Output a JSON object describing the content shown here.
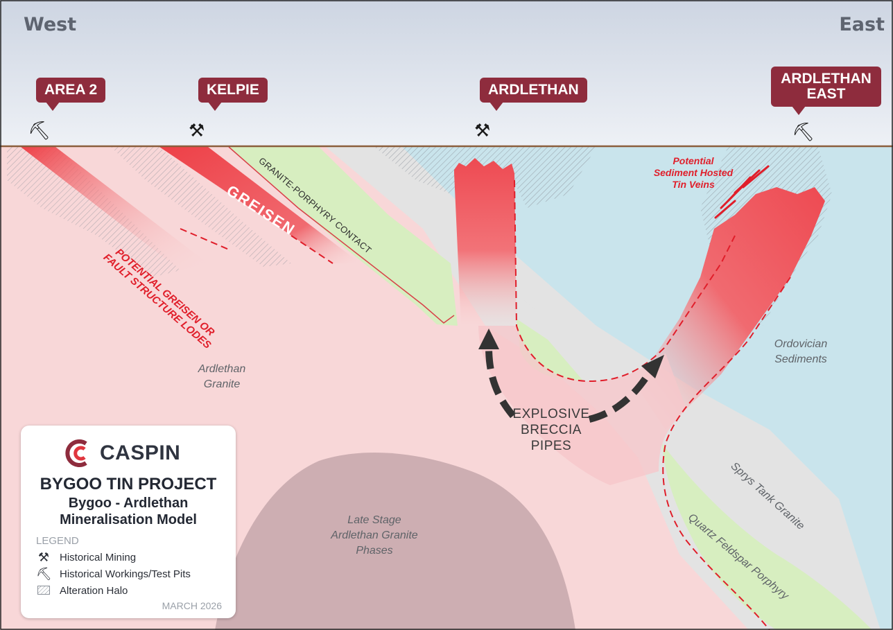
{
  "directions": {
    "west": "West",
    "east": "East"
  },
  "sites": [
    {
      "label": "AREA 2",
      "symbol": "historical-workings"
    },
    {
      "label": "KELPIE",
      "symbol": "historical-mining"
    },
    {
      "label": "ARDLETHAN",
      "symbol": "historical-mining"
    },
    {
      "label": "ARDLETHAN EAST",
      "symbol": "historical-workings"
    }
  ],
  "units": {
    "greisen": "GREISEN",
    "contact": "GRANITE-PORPHYRY CONTACT",
    "lodes": [
      "POTENTIAL GREISEN OR",
      "FAULT STRUCTURE LODES"
    ],
    "sediment_veins": [
      "Potential",
      "Sediment Hosted",
      "Tin Veins"
    ],
    "ardlethan_granite": [
      "Ardlethan",
      "Granite"
    ],
    "ordovician": [
      "Ordovician",
      "Sediments"
    ],
    "late_stage": [
      "Late Stage",
      "Ardlethan Granite",
      "Phases"
    ],
    "sprys": "Sprys Tank Granite",
    "porphyry": "Quartz Feldspar Porphyry",
    "breccia": [
      "EXPLOSIVE",
      "BRECCIA",
      "PIPES"
    ]
  },
  "card": {
    "company": "CASPIN",
    "project": "BYGOO TIN PROJECT",
    "model_line1": "Bygoo - Ardlethan",
    "model_line2": "Mineralisation Model",
    "legend_title": "LEGEND",
    "legend": [
      {
        "label": "Historical Mining",
        "icon": "crossed-hammers-icon"
      },
      {
        "label": "Historical Workings/Test Pits",
        "icon": "pick-icon"
      },
      {
        "label": "Alteration Halo",
        "icon": "hatch-swatch-icon"
      }
    ],
    "date": "MARCH 2026"
  },
  "colors": {
    "sky_top": "#cfd7e4",
    "sky_bottom": "#eef1f6",
    "granite": "#f8d7d8",
    "sediments": "#c9e4ec",
    "porphyry": "#d7eec0",
    "sprys": "#e3e3e3",
    "late_stage": "#cdaeb2",
    "site_label": "#8e2c3d",
    "greisen": "#ee5258",
    "ground_line": "#8b5e3c"
  }
}
